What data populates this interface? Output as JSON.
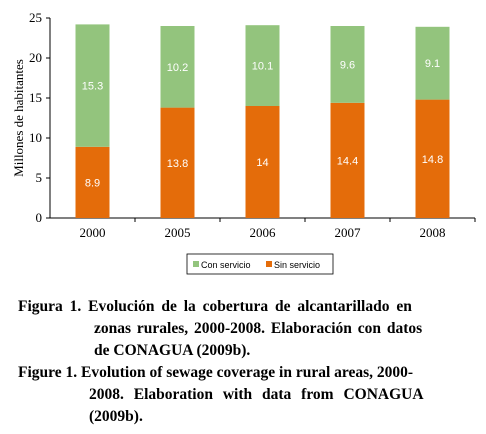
{
  "chart_data": {
    "type": "bar",
    "stacked": true,
    "categories": [
      "2000",
      "2005",
      "2006",
      "2007",
      "2008"
    ],
    "series": [
      {
        "name": "Sin servicio",
        "values": [
          8.9,
          13.8,
          14,
          14.4,
          14.8
        ],
        "color": "#E46C0A",
        "labels": [
          "8.9",
          "13.8",
          "14",
          "14.4",
          "14.8"
        ]
      },
      {
        "name": "Con servicio",
        "values": [
          15.3,
          10.2,
          10.1,
          9.6,
          9.1
        ],
        "color": "#93C47D",
        "labels": [
          "15.3",
          "10.2",
          "10.1",
          "9.6",
          "9.1"
        ]
      }
    ],
    "ylabel": "Millones de habitantes",
    "ylim": [
      0,
      25
    ],
    "yticks": [
      "0",
      "5",
      "10",
      "15",
      "20",
      "25"
    ],
    "grid": false,
    "legend_position": "bottom",
    "legend": [
      "Con servicio",
      "Sin servicio"
    ]
  },
  "caption": {
    "es_line1": "Figura 1. Evolución de la cobertura de alcantarillado en",
    "es_line2": "zonas rurales, 2000-2008. Elaboración con datos",
    "es_line3": "de CONAGUA (2009b).",
    "en_line1": "Figure 1. Evolution of sewage coverage in rural areas, 2000-",
    "en_line2": "2008. Elaboration with data from CONAGUA",
    "en_line3": "(2009b)."
  }
}
